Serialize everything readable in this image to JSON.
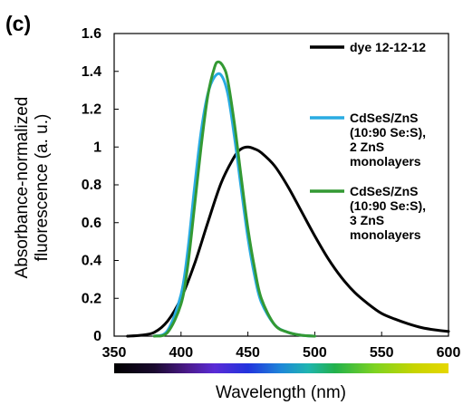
{
  "panel_label": "(c)",
  "chart_data": {
    "type": "line",
    "xlabel": "Wavelength (nm)",
    "ylabel_lines": [
      "Absorbance-normalized",
      "fluorescence (a. u.)"
    ],
    "xlim": [
      350,
      600
    ],
    "ylim": [
      0,
      1.6
    ],
    "x_ticks": [
      {
        "value": 350,
        "label": "350"
      },
      {
        "value": 400,
        "label": "400"
      },
      {
        "value": 450,
        "label": "450"
      },
      {
        "value": 500,
        "label": "500"
      },
      {
        "value": 550,
        "label": "550"
      },
      {
        "value": 600,
        "label": "600"
      }
    ],
    "y_ticks": [
      {
        "value": 0,
        "label": "0"
      },
      {
        "value": 0.2,
        "label": "0.2"
      },
      {
        "value": 0.4,
        "label": "0.4"
      },
      {
        "value": 0.6,
        "label": "0.6"
      },
      {
        "value": 0.8,
        "label": "0.8"
      },
      {
        "value": 1.0,
        "label": "1"
      },
      {
        "value": 1.2,
        "label": "1.2"
      },
      {
        "value": 1.4,
        "label": "1.4"
      },
      {
        "value": 1.6,
        "label": "1.6"
      }
    ],
    "grid": false,
    "legend_position": "right",
    "color_scale": "visible spectrum bar below x-axis",
    "series": [
      {
        "name": "dye 12-12-12",
        "legend_lines": [
          "dye 12-12-12"
        ],
        "color": "#000000",
        "x": [
          360,
          370,
          380,
          390,
          400,
          410,
          420,
          430,
          440,
          445,
          450,
          455,
          460,
          470,
          480,
          490,
          500,
          510,
          520,
          530,
          540,
          550,
          560,
          570,
          580,
          590,
          600
        ],
        "y": [
          0.0,
          0.005,
          0.02,
          0.08,
          0.2,
          0.38,
          0.6,
          0.81,
          0.95,
          0.99,
          1.0,
          0.99,
          0.97,
          0.9,
          0.79,
          0.66,
          0.53,
          0.41,
          0.31,
          0.23,
          0.17,
          0.12,
          0.09,
          0.065,
          0.045,
          0.033,
          0.025
        ]
      },
      {
        "name": "CdSeS/ZnS (10:90 Se:S), 2 ZnS monolayers",
        "legend_lines": [
          "CdSeS/ZnS",
          "(10:90 Se:S),",
          "2 ZnS",
          "monolayers"
        ],
        "color": "#29ABE2",
        "x": [
          380,
          390,
          400,
          405,
          410,
          415,
          420,
          425,
          430,
          435,
          440,
          445,
          450,
          455,
          460,
          470,
          480,
          490,
          500
        ],
        "y": [
          0.0,
          0.03,
          0.22,
          0.45,
          0.78,
          1.08,
          1.28,
          1.37,
          1.38,
          1.28,
          1.05,
          0.78,
          0.52,
          0.32,
          0.18,
          0.06,
          0.02,
          0.005,
          0.0
        ]
      },
      {
        "name": "CdSeS/ZnS (10:90 Se:S), 3 ZnS monolayers",
        "legend_lines": [
          "CdSeS/ZnS",
          "(10:90 Se:S),",
          "3 ZnS",
          "monolayers"
        ],
        "color": "#339933",
        "x": [
          380,
          390,
          400,
          405,
          410,
          415,
          420,
          425,
          428,
          432,
          435,
          440,
          445,
          450,
          455,
          460,
          470,
          480,
          490,
          500
        ],
        "y": [
          0.0,
          0.02,
          0.17,
          0.37,
          0.68,
          1.0,
          1.27,
          1.42,
          1.45,
          1.42,
          1.35,
          1.12,
          0.84,
          0.57,
          0.36,
          0.2,
          0.06,
          0.02,
          0.005,
          0.0
        ]
      }
    ]
  }
}
